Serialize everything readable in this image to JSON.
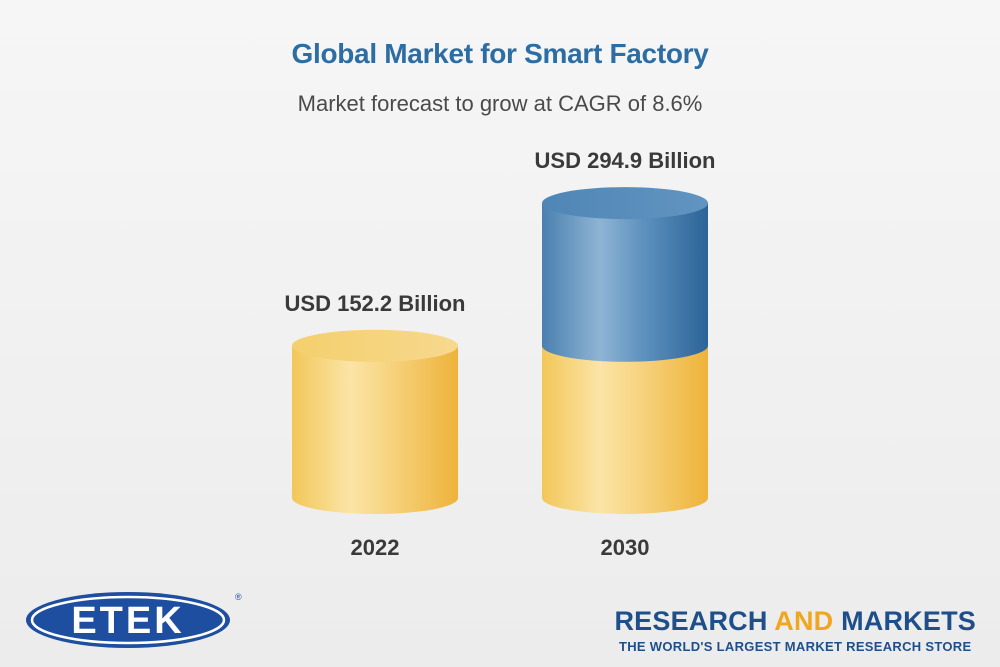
{
  "header": {
    "title": "Global Market for Smart Factory",
    "subtitle": "Market forecast to grow at CAGR of 8.6%"
  },
  "chart_data": {
    "type": "bar",
    "categories": [
      "2022",
      "2030"
    ],
    "values": [
      152.2,
      294.9
    ],
    "value_labels": [
      "USD 152.2 Billion",
      "USD 294.9 Billion"
    ],
    "title": "Global Market for Smart Factory",
    "subtitle": "Market forecast to grow at CAGR of 8.6%",
    "unit": "USD Billion",
    "grid": false,
    "legend": "none"
  },
  "colors": {
    "title": "#2c6ea4",
    "base_cylinder": "#f2c75a",
    "growth_cylinder": "#4f86b6"
  },
  "branding": {
    "left_logo": "ETEK",
    "registered_mark": "®",
    "right_logo_part1": "RESEARCH ",
    "right_logo_part2": "AND",
    "right_logo_part3": " MARKETS",
    "right_tagline": "THE WORLD'S LARGEST MARKET RESEARCH STORE"
  }
}
